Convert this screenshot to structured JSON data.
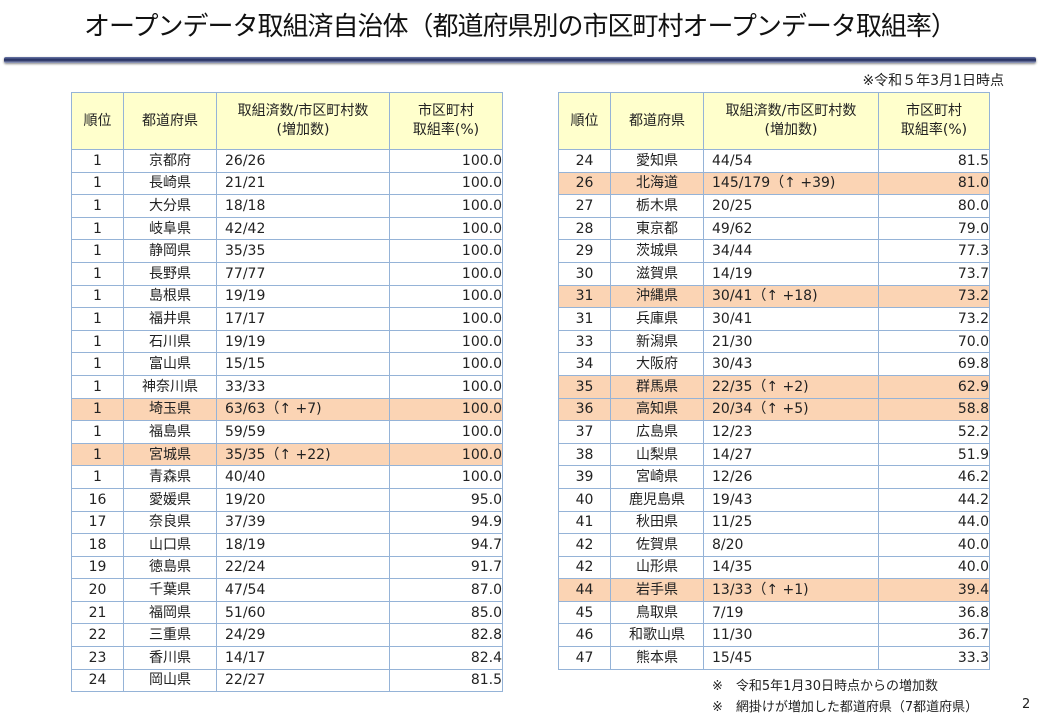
{
  "title": "オープンデータ取組済自治体（都道府県別の市区町村オープンデータ取組率）",
  "as_of": "※令和５年3月1日時点",
  "highlight_color": "#fbd4b4",
  "header_color": "#ffffcc",
  "columns": [
    "順位",
    "都道府県",
    "取組済数/市区町村数\n(増加数)",
    "市区町村\n取組率(%)"
  ],
  "left_table": [
    [
      "1",
      "京都府",
      "26/26",
      "100.0",
      false
    ],
    [
      "1",
      "長崎県",
      "21/21",
      "100.0",
      false
    ],
    [
      "1",
      "大分県",
      "18/18",
      "100.0",
      false
    ],
    [
      "1",
      "岐阜県",
      "42/42",
      "100.0",
      false
    ],
    [
      "1",
      "静岡県",
      "35/35",
      "100.0",
      false
    ],
    [
      "1",
      "長野県",
      "77/77",
      "100.0",
      false
    ],
    [
      "1",
      "島根県",
      "19/19",
      "100.0",
      false
    ],
    [
      "1",
      "福井県",
      "17/17",
      "100.0",
      false
    ],
    [
      "1",
      "石川県",
      "19/19",
      "100.0",
      false
    ],
    [
      "1",
      "富山県",
      "15/15",
      "100.0",
      false
    ],
    [
      "1",
      "神奈川県",
      "33/33",
      "100.0",
      false
    ],
    [
      "1",
      "埼玉県",
      "63/63（↑ +7)",
      "100.0",
      true
    ],
    [
      "1",
      "福島県",
      "59/59",
      "100.0",
      false
    ],
    [
      "1",
      "宮城県",
      "35/35（↑ +22)",
      "100.0",
      true
    ],
    [
      "1",
      "青森県",
      "40/40",
      "100.0",
      false
    ],
    [
      "16",
      "愛媛県",
      "19/20",
      "95.0",
      false
    ],
    [
      "17",
      "奈良県",
      "37/39",
      "94.9",
      false
    ],
    [
      "18",
      "山口県",
      "18/19",
      "94.7",
      false
    ],
    [
      "19",
      "徳島県",
      "22/24",
      "91.7",
      false
    ],
    [
      "20",
      "千葉県",
      "47/54",
      "87.0",
      false
    ],
    [
      "21",
      "福岡県",
      "51/60",
      "85.0",
      false
    ],
    [
      "22",
      "三重県",
      "24/29",
      "82.8",
      false
    ],
    [
      "23",
      "香川県",
      "14/17",
      "82.4",
      false
    ],
    [
      "24",
      "岡山県",
      "22/27",
      "81.5",
      false
    ]
  ],
  "right_table": [
    [
      "24",
      "愛知県",
      "44/54",
      "81.5",
      false
    ],
    [
      "26",
      "北海道",
      "145/179（↑ +39)",
      "81.0",
      true
    ],
    [
      "27",
      "栃木県",
      "20/25",
      "80.0",
      false
    ],
    [
      "28",
      "東京都",
      "49/62",
      "79.0",
      false
    ],
    [
      "29",
      "茨城県",
      "34/44",
      "77.3",
      false
    ],
    [
      "30",
      "滋賀県",
      "14/19",
      "73.7",
      false
    ],
    [
      "31",
      "沖縄県",
      "30/41（↑ +18)",
      "73.2",
      true
    ],
    [
      "31",
      "兵庫県",
      "30/41",
      "73.2",
      false
    ],
    [
      "33",
      "新潟県",
      "21/30",
      "70.0",
      false
    ],
    [
      "34",
      "大阪府",
      "30/43",
      "69.8",
      false
    ],
    [
      "35",
      "群馬県",
      "22/35（↑ +2)",
      "62.9",
      true
    ],
    [
      "36",
      "高知県",
      "20/34（↑ +5)",
      "58.8",
      true
    ],
    [
      "37",
      "広島県",
      "12/23",
      "52.2",
      false
    ],
    [
      "38",
      "山梨県",
      "14/27",
      "51.9",
      false
    ],
    [
      "39",
      "宮崎県",
      "12/26",
      "46.2",
      false
    ],
    [
      "40",
      "鹿児島県",
      "19/43",
      "44.2",
      false
    ],
    [
      "41",
      "秋田県",
      "11/25",
      "44.0",
      false
    ],
    [
      "42",
      "佐賀県",
      "8/20",
      "40.0",
      false
    ],
    [
      "42",
      "山形県",
      "14/35",
      "40.0",
      false
    ],
    [
      "44",
      "岩手県",
      "13/33（↑ +1)",
      "39.4",
      true
    ],
    [
      "45",
      "鳥取県",
      "7/19",
      "36.8",
      false
    ],
    [
      "46",
      "和歌山県",
      "11/30",
      "36.7",
      false
    ],
    [
      "47",
      "熊本県",
      "15/45",
      "33.3",
      false
    ]
  ],
  "notes": [
    "※　令和5年1月30日時点からの増加数",
    "※　網掛けが増加した都道府県（7都道府県）"
  ],
  "page_number": "2"
}
